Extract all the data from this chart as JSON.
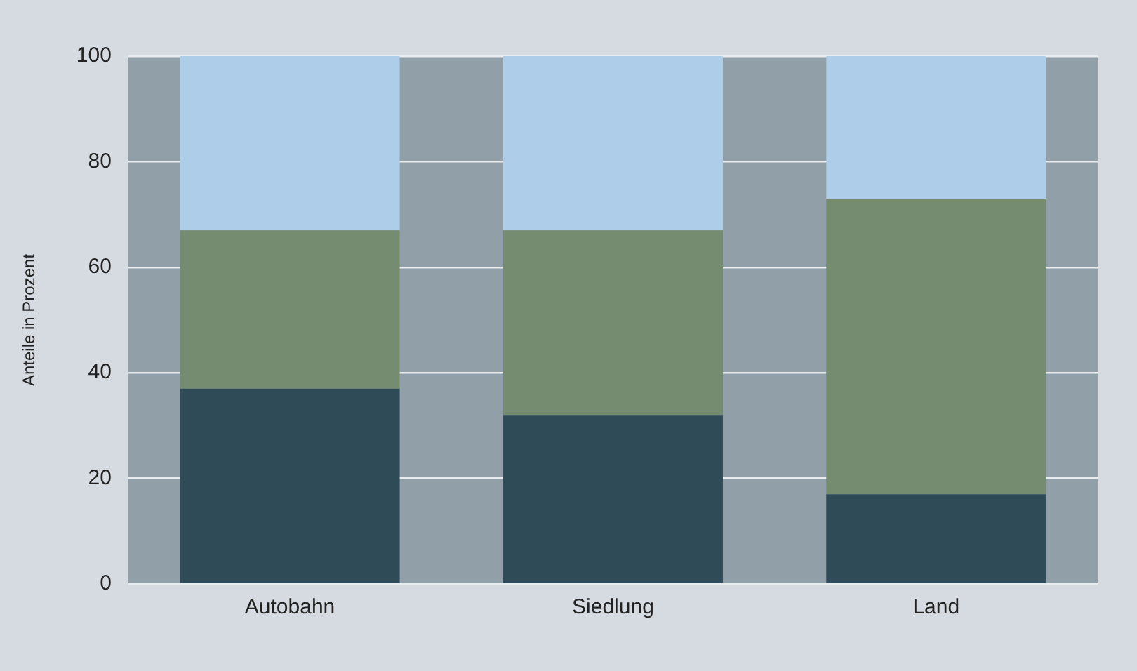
{
  "chart_data": {
    "type": "bar",
    "stacked": true,
    "ylabel": "Anteile in Prozent",
    "categories": [
      "Autobahn",
      "Siedlung",
      "Land"
    ],
    "series": [
      {
        "color": "#2f4b58",
        "values": [
          37,
          32,
          17
        ]
      },
      {
        "color": "#758c70",
        "values": [
          30,
          35,
          56
        ]
      },
      {
        "color": "#adcde8",
        "values": [
          33,
          33,
          27
        ]
      }
    ],
    "ylim": [
      0,
      100
    ],
    "yticks": [
      0,
      20,
      40,
      60,
      80,
      100
    ],
    "grid": "y",
    "legend": false
  }
}
